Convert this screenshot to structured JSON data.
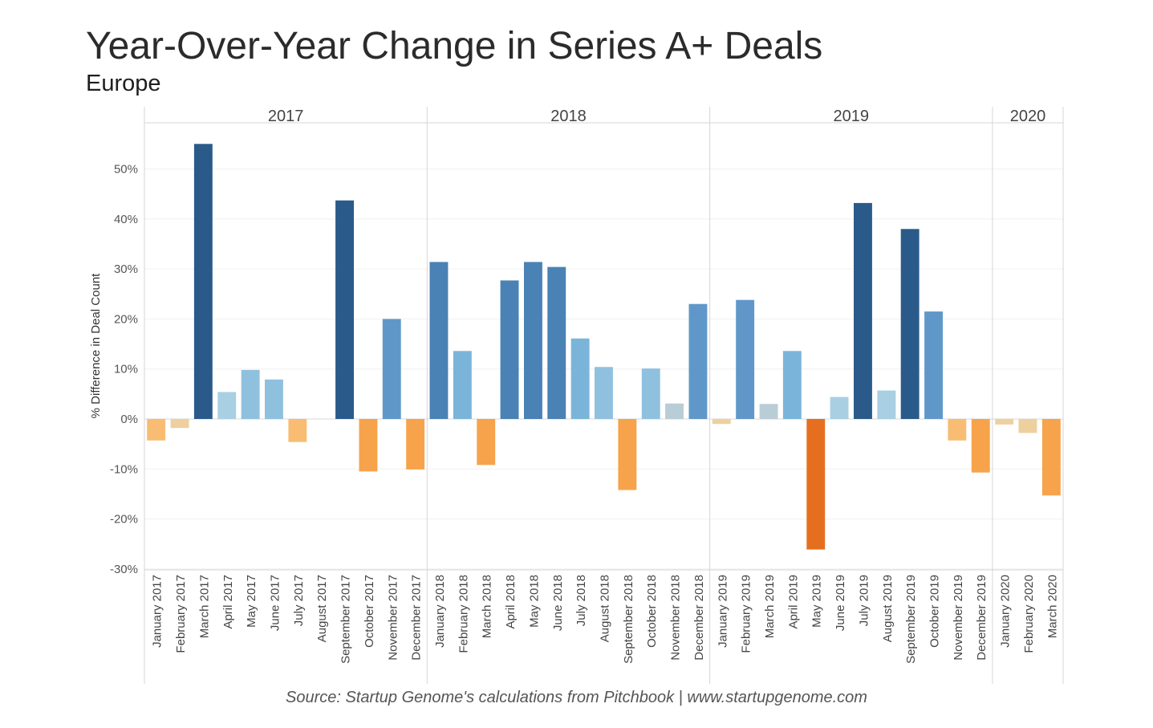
{
  "title": "Year-Over-Year Change in Series A+ Deals",
  "subtitle": "Europe",
  "source": "Source: Startup Genome's calculations from Pitchbook | www.startupgenome.com",
  "chart_data": {
    "type": "bar",
    "ylabel": "% Difference in Deal Count",
    "xlabel": "",
    "ylim": [
      -30,
      58
    ],
    "y_ticks": [
      50,
      40,
      30,
      20,
      10,
      0,
      -10,
      -20,
      -30
    ],
    "y_tick_labels": [
      "50%",
      "40%",
      "30%",
      "20%",
      "10%",
      "0%",
      "-10%",
      "-20%",
      "-30%"
    ],
    "grid": true,
    "year_groups": [
      {
        "label": "2017",
        "count": 12
      },
      {
        "label": "2018",
        "count": 12
      },
      {
        "label": "2019",
        "count": 12
      },
      {
        "label": "2020",
        "count": 3
      }
    ],
    "categories": [
      "January 2017",
      "February 2017",
      "March 2017",
      "April 2017",
      "May 2017",
      "June 2017",
      "July 2017",
      "August 2017",
      "September 2017",
      "October 2017",
      "November 2017",
      "December 2017",
      "January 2018",
      "February 2018",
      "March 2018",
      "April 2018",
      "May 2018",
      "June 2018",
      "July 2018",
      "August 2018",
      "September 2018",
      "October 2018",
      "November 2018",
      "December 2018",
      "January 2019",
      "February 2019",
      "March 2019",
      "April 2019",
      "May 2019",
      "June 2019",
      "July 2019",
      "August 2019",
      "September 2019",
      "October 2019",
      "November 2019",
      "December 2019",
      "January 2020",
      "February 2020",
      "March 2020"
    ],
    "values": [
      -4.3,
      -1.8,
      55.0,
      5.4,
      9.8,
      7.9,
      -4.6,
      0,
      43.7,
      -10.5,
      20.0,
      -10.1,
      31.4,
      13.6,
      -9.2,
      27.7,
      31.4,
      30.4,
      16.1,
      10.4,
      -14.2,
      10.1,
      3.1,
      23.0,
      -1.0,
      23.8,
      3.0,
      13.6,
      -26.1,
      4.4,
      43.2,
      5.7,
      38.0,
      21.5,
      -4.3,
      -10.7,
      -1.1,
      -2.8,
      -15.3
    ],
    "colors": {
      "pos_light": "#a9cfe3",
      "pos_mid": "#6fa7d1",
      "pos_dark": "#2a5a8a",
      "neg_light": "#eecf9e",
      "neg_mid": "#f6a34c",
      "neg_dark": "#e56f1f",
      "neutral": "#b9cdd6"
    }
  }
}
